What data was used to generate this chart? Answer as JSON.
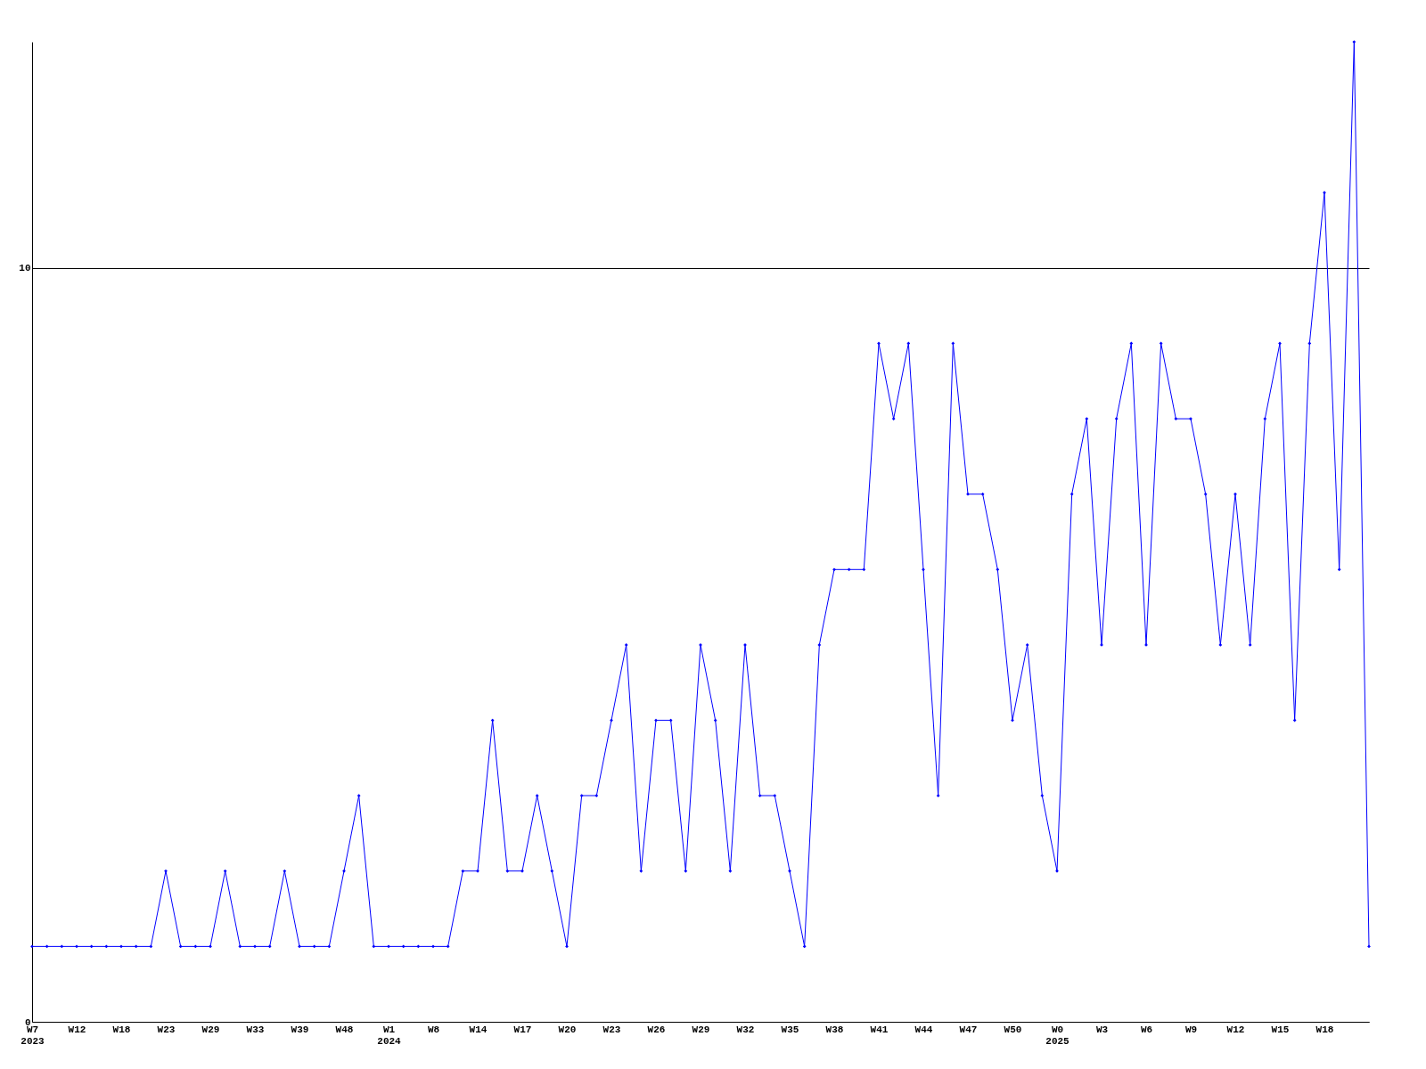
{
  "chart_data": {
    "type": "line",
    "categories": [
      "W7\n2023",
      null,
      null,
      "W12",
      null,
      null,
      "W18",
      null,
      null,
      "W23",
      null,
      null,
      "W29",
      null,
      null,
      "W33",
      null,
      null,
      "W39",
      null,
      null,
      "W48",
      null,
      null,
      "W1\n2024",
      null,
      null,
      "W8",
      null,
      null,
      "W14",
      null,
      null,
      "W17",
      null,
      null,
      "W20",
      null,
      null,
      "W23",
      null,
      null,
      "W26",
      null,
      null,
      "W29",
      null,
      null,
      "W32",
      null,
      null,
      "W35",
      null,
      null,
      "W38",
      null,
      null,
      "W41",
      null,
      null,
      "W44",
      null,
      null,
      "W47",
      null,
      null,
      "W50",
      null,
      null,
      "W0\n2025",
      null,
      null,
      "W3",
      null,
      null,
      "W6",
      null,
      null,
      "W9",
      null,
      null,
      "W12",
      null,
      null,
      "W15",
      null,
      null,
      "W18",
      null,
      null,
      null
    ],
    "values": [
      1,
      1,
      1,
      1,
      1,
      1,
      1,
      1,
      1,
      2,
      1,
      1,
      1,
      2,
      1,
      1,
      1,
      2,
      1,
      1,
      1,
      2,
      3,
      1,
      1,
      1,
      1,
      1,
      1,
      2,
      2,
      4,
      2,
      2,
      3,
      2,
      1,
      3,
      3,
      4,
      5,
      2,
      4,
      4,
      2,
      5,
      4,
      2,
      5,
      3,
      3,
      2,
      1,
      5,
      6,
      6,
      6,
      9,
      8,
      9,
      6,
      3,
      9,
      7,
      7,
      6,
      4,
      5,
      3,
      2,
      7,
      8,
      5,
      8,
      9,
      5,
      9,
      8,
      8,
      7,
      5,
      7,
      5,
      8,
      9,
      4,
      9,
      11,
      6,
      13,
      1
    ],
    "color": "#0000ff",
    "ylim": [
      0,
      13
    ],
    "yticks": [
      0,
      10
    ],
    "grid": "y",
    "marker": "diamond",
    "line_style": "solid"
  }
}
